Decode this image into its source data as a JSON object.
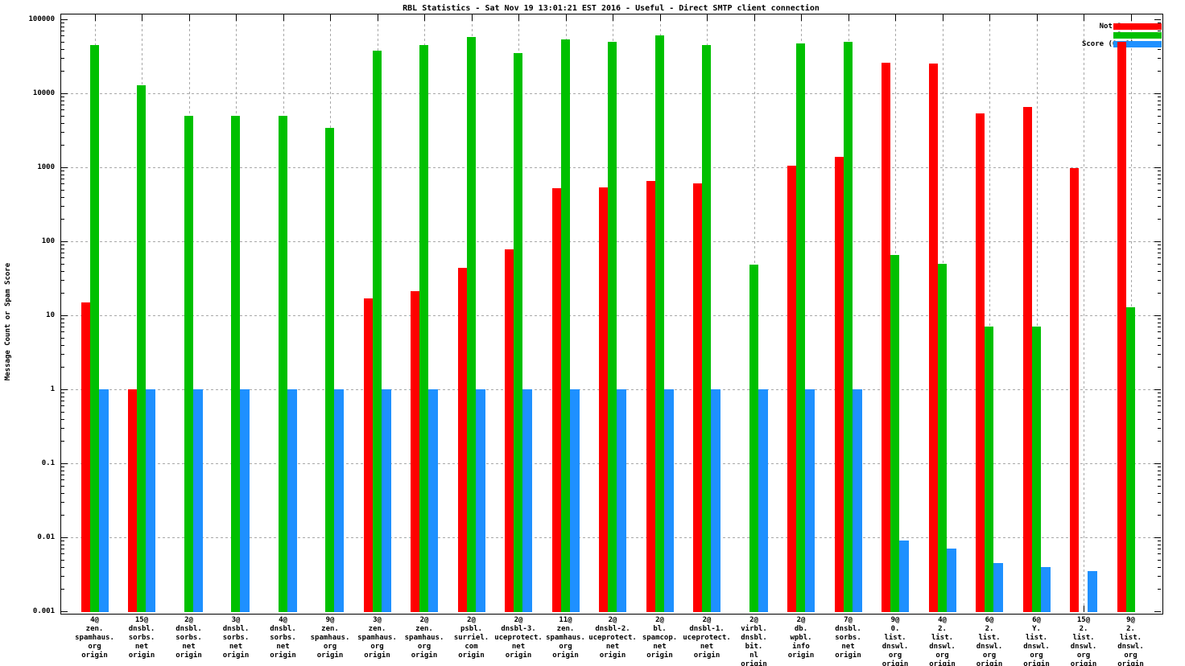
{
  "title": "RBL Statistics - Sat Nov 19 13:01:21 EST 2016 - Useful - Direct SMTP client connection",
  "y_axis": {
    "label": "Message Count or Spam Score",
    "tick_labels": [
      "100000",
      "10000",
      "1000",
      "100",
      "10",
      "1",
      "0.1",
      "0.01",
      "0.001"
    ],
    "tick_exponents": [
      5,
      4,
      3,
      2,
      1,
      0,
      -1,
      -2,
      -3
    ]
  },
  "legend": {
    "position": "top-right-inside",
    "entries": [
      {
        "label": "Not Spam",
        "color": "#ff0000"
      },
      {
        "label": "Spam",
        "color": "#00c000"
      },
      {
        "label": "Score (0..1)",
        "color": "#1e90ff"
      }
    ]
  },
  "chart_data": {
    "type": "bar",
    "scale": "log",
    "title": "RBL Statistics - Sat Nov 19 13:01:21 EST 2016 - Useful - Direct SMTP client connection",
    "xlabel": "",
    "ylabel": "Message Count or Spam Score",
    "ylim": [
      0.001,
      100000
    ],
    "grid": true,
    "categories": [
      [
        "4@",
        "zen.",
        "spamhaus.",
        "org",
        "origin"
      ],
      [
        "15@",
        "dnsbl.",
        "sorbs.",
        "net",
        "origin"
      ],
      [
        "2@",
        "dnsbl.",
        "sorbs.",
        "net",
        "origin"
      ],
      [
        "3@",
        "dnsbl.",
        "sorbs.",
        "net",
        "origin"
      ],
      [
        "4@",
        "dnsbl.",
        "sorbs.",
        "net",
        "origin"
      ],
      [
        "9@",
        "zen.",
        "spamhaus.",
        "org",
        "origin"
      ],
      [
        "3@",
        "zen.",
        "spamhaus.",
        "org",
        "origin"
      ],
      [
        "2@",
        "zen.",
        "spamhaus.",
        "org",
        "origin"
      ],
      [
        "2@",
        "psbl.",
        "surriel.",
        "com",
        "origin"
      ],
      [
        "2@",
        "dnsbl-3.",
        "uceprotect.",
        "net",
        "origin"
      ],
      [
        "11@",
        "zen.",
        "spamhaus.",
        "org",
        "origin"
      ],
      [
        "2@",
        "dnsbl-2.",
        "uceprotect.",
        "net",
        "origin"
      ],
      [
        "2@",
        "bl.",
        "spamcop.",
        "net",
        "origin"
      ],
      [
        "2@",
        "dnsbl-1.",
        "uceprotect.",
        "net",
        "origin"
      ],
      [
        "2@",
        "virbl.",
        "dnsbl.",
        "bit.",
        "nl",
        "origin"
      ],
      [
        "2@",
        "db.",
        "wpbl.",
        "info",
        "origin"
      ],
      [
        "7@",
        "dnsbl.",
        "sorbs.",
        "net",
        "origin"
      ],
      [
        "9@",
        "0.",
        "list.",
        "dnswl.",
        "org",
        "origin"
      ],
      [
        "4@",
        "2.",
        "list.",
        "dnswl.",
        "org",
        "origin"
      ],
      [
        "6@",
        "2.",
        "list.",
        "dnswl.",
        "org",
        "origin"
      ],
      [
        "6@",
        "Y.",
        "list.",
        "dnswl.",
        "org",
        "origin"
      ],
      [
        "15@",
        "2.",
        "list.",
        "dnswl.",
        "org",
        "origin"
      ],
      [
        "9@",
        "2.",
        "list.",
        "dnswl.",
        "org",
        "origin"
      ]
    ],
    "series": [
      {
        "name": "Not Spam",
        "color": "#ff0000",
        "values": [
          15,
          1,
          null,
          null,
          null,
          null,
          17,
          21,
          44,
          77,
          520,
          530,
          650,
          600,
          null,
          1050,
          1380,
          26000,
          25000,
          5400,
          6500,
          970,
          50000
        ]
      },
      {
        "name": "Spam",
        "color": "#00c000",
        "values": [
          45000,
          13000,
          5000,
          5000,
          5000,
          3400,
          38000,
          45000,
          57000,
          35000,
          53000,
          50000,
          60000,
          45000,
          48,
          47000,
          50000,
          65,
          50,
          7,
          7,
          null,
          13
        ]
      },
      {
        "name": "Score (0..1)",
        "color": "#1e90ff",
        "values": [
          1,
          1,
          1,
          1,
          1,
          1,
          1,
          1,
          1,
          1,
          1,
          1,
          1,
          1,
          1,
          1,
          1,
          0.009,
          0.007,
          0.0045,
          0.004,
          0.0035,
          null
        ]
      }
    ]
  }
}
